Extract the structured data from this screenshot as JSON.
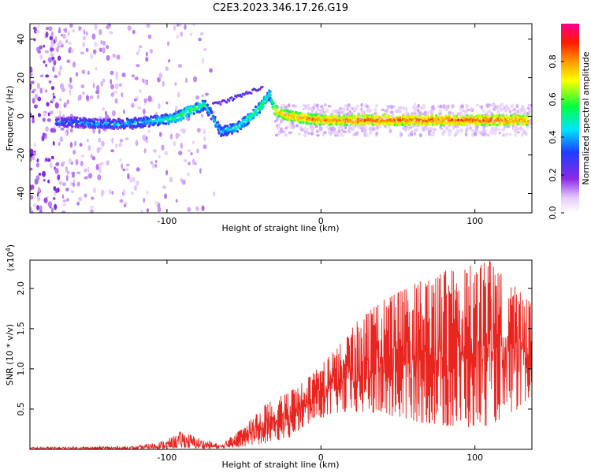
{
  "title": "C2E3.2023.346.17.26.G19",
  "chart_data": [
    {
      "type": "heatmap",
      "xlabel": "Height of straight line (km)",
      "ylabel": "Frequency (Hz)",
      "xlim": [
        -189,
        137
      ],
      "ylim": [
        -50,
        48
      ],
      "xticks": [
        -100,
        0,
        100
      ],
      "yticks": [
        -40,
        -20,
        0,
        20,
        40
      ],
      "colorbar": {
        "label": "Normalized spectral amplitude",
        "range": [
          0.0,
          1.0
        ],
        "ticks": [
          "0.0",
          "0.2",
          "0.4",
          "0.6",
          "0.8"
        ],
        "colormap": "rainbow (white → violet → blue → cyan → green → yellow → orange → red → magenta)"
      },
      "main_track": [
        {
          "x": -172,
          "y": -3,
          "amp": 0.35
        },
        {
          "x": -160,
          "y": -3,
          "amp": 0.38
        },
        {
          "x": -145,
          "y": -4,
          "amp": 0.4
        },
        {
          "x": -130,
          "y": -4,
          "amp": 0.42
        },
        {
          "x": -115,
          "y": -3,
          "amp": 0.45
        },
        {
          "x": -105,
          "y": -2,
          "amp": 0.5
        },
        {
          "x": -95,
          "y": -1,
          "amp": 0.55
        },
        {
          "x": -85,
          "y": 3,
          "amp": 0.6
        },
        {
          "x": -75,
          "y": 6,
          "amp": 0.5
        },
        {
          "x": -65,
          "y": -8,
          "amp": 0.45
        },
        {
          "x": -55,
          "y": -6,
          "amp": 0.5
        },
        {
          "x": -45,
          "y": 0,
          "amp": 0.55
        },
        {
          "x": -38,
          "y": 6,
          "amp": 0.6
        },
        {
          "x": -33,
          "y": 12,
          "amp": 0.5
        },
        {
          "x": -30,
          "y": 3,
          "amp": 0.75
        },
        {
          "x": -20,
          "y": 0,
          "amp": 0.8
        },
        {
          "x": 0,
          "y": -2,
          "amp": 0.82
        },
        {
          "x": 30,
          "y": -2,
          "amp": 0.85
        },
        {
          "x": 60,
          "y": -2,
          "amp": 0.85
        },
        {
          "x": 90,
          "y": -2,
          "amp": 0.85
        },
        {
          "x": 120,
          "y": -2,
          "amp": 0.85
        },
        {
          "x": 135,
          "y": -2,
          "amp": 0.8
        }
      ],
      "secondary_track": [
        {
          "x": -70,
          "y": 6,
          "amp": 0.25
        },
        {
          "x": -58,
          "y": 9,
          "amp": 0.3
        },
        {
          "x": -48,
          "y": 12,
          "amp": 0.3
        },
        {
          "x": -38,
          "y": 15,
          "amp": 0.25
        }
      ]
    },
    {
      "type": "line",
      "xlabel": "Height of straight line (km)",
      "ylabel": "SNR (10 * v/v)",
      "yscale_label": "(x10",
      "yscale_exp": "4",
      "yscale_close": ")",
      "xlim": [
        -189,
        137
      ],
      "ylim": [
        0,
        2.35
      ],
      "xticks": [
        -100,
        0,
        100
      ],
      "yticks": [
        "0.5",
        "1.0",
        "1.5",
        "2.0"
      ],
      "color": "#e8251f",
      "envelope": [
        {
          "x": -189,
          "lo": 0.0,
          "hi": 0.03
        },
        {
          "x": -120,
          "lo": 0.0,
          "hi": 0.04
        },
        {
          "x": -100,
          "lo": 0.01,
          "hi": 0.12
        },
        {
          "x": -90,
          "lo": 0.02,
          "hi": 0.24
        },
        {
          "x": -80,
          "lo": 0.01,
          "hi": 0.15
        },
        {
          "x": -65,
          "lo": 0.01,
          "hi": 0.06
        },
        {
          "x": -50,
          "lo": 0.03,
          "hi": 0.28
        },
        {
          "x": -35,
          "lo": 0.08,
          "hi": 0.58
        },
        {
          "x": -20,
          "lo": 0.15,
          "hi": 0.72
        },
        {
          "x": -5,
          "lo": 0.35,
          "hi": 0.95
        },
        {
          "x": 10,
          "lo": 0.45,
          "hi": 1.25
        },
        {
          "x": 30,
          "lo": 0.45,
          "hi": 1.75
        },
        {
          "x": 60,
          "lo": 0.35,
          "hi": 2.05
        },
        {
          "x": 90,
          "lo": 0.25,
          "hi": 2.3
        },
        {
          "x": 110,
          "lo": 0.3,
          "hi": 2.35
        },
        {
          "x": 137,
          "lo": 0.6,
          "hi": 1.8
        }
      ]
    }
  ]
}
